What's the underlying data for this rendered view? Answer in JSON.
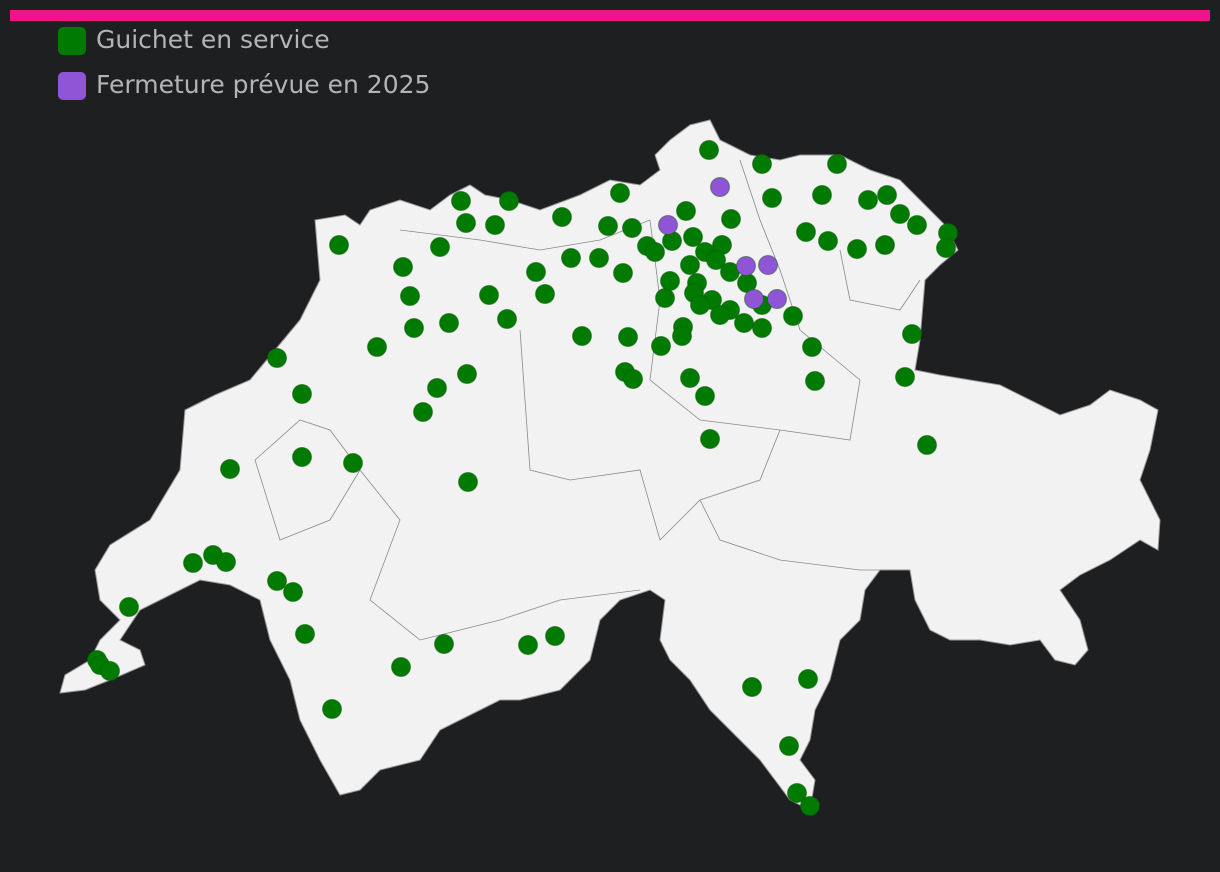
{
  "legend": [
    {
      "label": "Guichet en service",
      "color": "#007a00"
    },
    {
      "label": "Fermeture prévue en 2025",
      "color": "#9055d6"
    }
  ]
}
